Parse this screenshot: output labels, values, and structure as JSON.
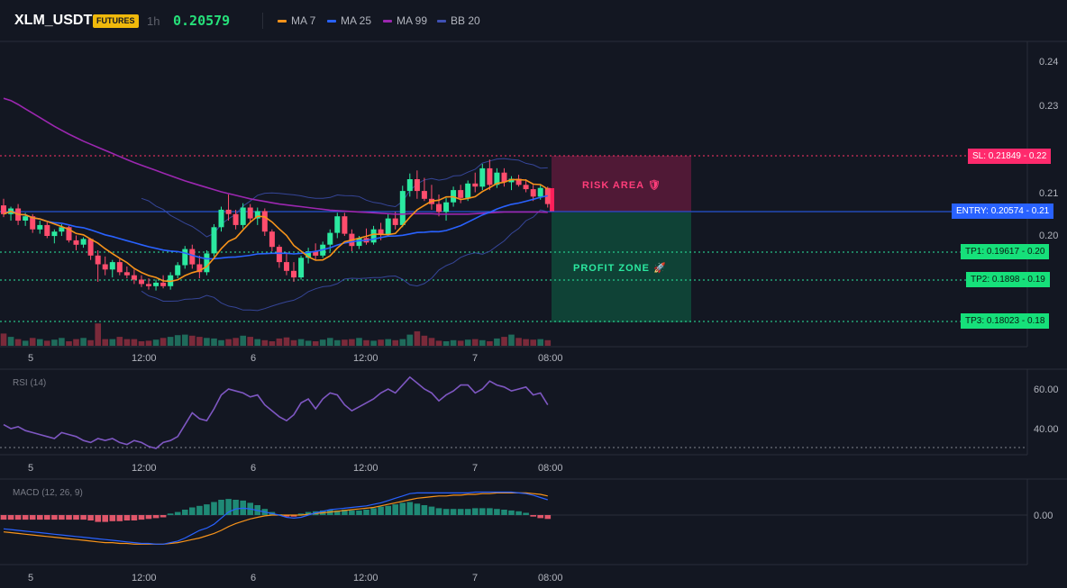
{
  "header": {
    "symbol": "XLM_USDT",
    "badge": "FUTURES",
    "timeframe": "1h",
    "price": "0.20579",
    "legend": [
      {
        "label": "MA 7",
        "color": "#f7931a"
      },
      {
        "label": "MA 25",
        "color": "#2962ff"
      },
      {
        "label": "MA 99",
        "color": "#9c27b0"
      },
      {
        "label": "BB 20",
        "color": "#3f51b5"
      }
    ]
  },
  "price_axis": {
    "ticks": [
      "0.24",
      "0.23",
      "0.22",
      "0.21",
      "0.20",
      "0.19",
      "0.18"
    ]
  },
  "time_axis": {
    "ticks": [
      "5",
      "12:00",
      "6",
      "12:00",
      "7",
      "08:00"
    ]
  },
  "levels": {
    "sl": {
      "label": "SL: 0.21849",
      "axis_value": "0.22",
      "value": 0.21849,
      "color": "#ff3366"
    },
    "entry": {
      "label": "ENTRY: 0.20574",
      "axis_value": "0.21",
      "value": 0.20574,
      "color": "#2962ff"
    },
    "tp": [
      {
        "label": "TP1: 0.19617",
        "axis_value": "0.20",
        "value": 0.19617
      },
      {
        "label": "TP2: 0.1898",
        "axis_value": "0.19",
        "value": 0.1898
      },
      {
        "label": "TP3: 0.18023",
        "axis_value": "0.18",
        "value": 0.18023
      }
    ]
  },
  "zones": {
    "risk": "RISK AREA 🛡",
    "profit": "PROFIT ZONE 🚀"
  },
  "rsi": {
    "title": "RSI (14)",
    "ticks": [
      "60.00",
      "40.00"
    ],
    "time_ticks": [
      "5",
      "12:00",
      "6",
      "12:00",
      "7",
      "08:00"
    ]
  },
  "macd": {
    "title": "MACD (12, 26, 9)",
    "ticks": [
      "0.00"
    ],
    "time_ticks": [
      "5",
      "12:00",
      "6",
      "12:00",
      "7",
      "08:00"
    ]
  },
  "chart_data": {
    "type": "candlestick",
    "interval": "1h",
    "candles": [
      [
        0.2065,
        0.208,
        0.2038,
        0.2045
      ],
      [
        0.2045,
        0.2062,
        0.203,
        0.2058
      ],
      [
        0.2058,
        0.2068,
        0.202,
        0.203
      ],
      [
        0.203,
        0.2048,
        0.2018,
        0.204
      ],
      [
        0.204,
        0.2045,
        0.2002,
        0.201
      ],
      [
        0.201,
        0.203,
        0.2,
        0.202
      ],
      [
        0.202,
        0.2026,
        0.199,
        0.1995
      ],
      [
        0.1995,
        0.201,
        0.1978,
        0.2005
      ],
      [
        0.2005,
        0.2022,
        0.1995,
        0.2015
      ],
      [
        0.2015,
        0.2018,
        0.198,
        0.1985
      ],
      [
        0.1985,
        0.1996,
        0.1962,
        0.1975
      ],
      [
        0.1975,
        0.1992,
        0.1968,
        0.1988
      ],
      [
        0.1988,
        0.199,
        0.194,
        0.195
      ],
      [
        0.195,
        0.1962,
        0.189,
        0.193
      ],
      [
        0.193,
        0.1948,
        0.1905,
        0.1918
      ],
      [
        0.1918,
        0.194,
        0.19,
        0.1935
      ],
      [
        0.1935,
        0.1942,
        0.1905,
        0.1912
      ],
      [
        0.1912,
        0.1925,
        0.1898,
        0.1905
      ],
      [
        0.1905,
        0.1918,
        0.1885,
        0.1895
      ],
      [
        0.1895,
        0.1905,
        0.1878,
        0.1885
      ],
      [
        0.1885,
        0.1898,
        0.1872,
        0.188
      ],
      [
        0.188,
        0.1895,
        0.187,
        0.1888
      ],
      [
        0.1888,
        0.1905,
        0.1875,
        0.188
      ],
      [
        0.188,
        0.1912,
        0.1872,
        0.1905
      ],
      [
        0.1905,
        0.1935,
        0.1898,
        0.1928
      ],
      [
        0.1928,
        0.1972,
        0.192,
        0.1965
      ],
      [
        0.1965,
        0.1975,
        0.192,
        0.193
      ],
      [
        0.193,
        0.195,
        0.1898,
        0.1912
      ],
      [
        0.1912,
        0.1962,
        0.1905,
        0.1955
      ],
      [
        0.1955,
        0.2022,
        0.1948,
        0.2015
      ],
      [
        0.2015,
        0.2062,
        0.2005,
        0.2055
      ],
      [
        0.2055,
        0.209,
        0.203,
        0.2045
      ],
      [
        0.2045,
        0.2055,
        0.201,
        0.202
      ],
      [
        0.202,
        0.207,
        0.2012,
        0.206
      ],
      [
        0.206,
        0.2068,
        0.2025,
        0.2035
      ],
      [
        0.2035,
        0.206,
        0.202,
        0.2052
      ],
      [
        0.2052,
        0.2058,
        0.1995,
        0.2005
      ],
      [
        0.2005,
        0.201,
        0.196,
        0.197
      ],
      [
        0.197,
        0.1975,
        0.1922,
        0.1935
      ],
      [
        0.1935,
        0.1958,
        0.1905,
        0.1915
      ],
      [
        0.1915,
        0.1935,
        0.189,
        0.19
      ],
      [
        0.19,
        0.195,
        0.1895,
        0.1945
      ],
      [
        0.1945,
        0.1968,
        0.1932,
        0.196
      ],
      [
        0.196,
        0.1978,
        0.194,
        0.195
      ],
      [
        0.195,
        0.1982,
        0.1945,
        0.1975
      ],
      [
        0.1975,
        0.201,
        0.196,
        0.2002
      ],
      [
        0.2002,
        0.2048,
        0.199,
        0.204
      ],
      [
        0.204,
        0.2048,
        0.1995,
        0.2
      ],
      [
        0.2,
        0.201,
        0.196,
        0.1972
      ],
      [
        0.1972,
        0.1995,
        0.1965,
        0.199
      ],
      [
        0.199,
        0.2012,
        0.1975,
        0.198
      ],
      [
        0.198,
        0.2018,
        0.1975,
        0.201
      ],
      [
        0.201,
        0.2025,
        0.1985,
        0.1998
      ],
      [
        0.1998,
        0.2045,
        0.1995,
        0.2035
      ],
      [
        0.2035,
        0.205,
        0.201,
        0.202
      ],
      [
        0.202,
        0.211,
        0.2015,
        0.2098
      ],
      [
        0.2098,
        0.2138,
        0.2085,
        0.2125
      ],
      [
        0.2125,
        0.2145,
        0.208,
        0.2098
      ],
      [
        0.2098,
        0.2128,
        0.2075,
        0.208
      ],
      [
        0.208,
        0.2112,
        0.2055,
        0.2068
      ],
      [
        0.2068,
        0.209,
        0.204,
        0.205
      ],
      [
        0.205,
        0.2082,
        0.203,
        0.2072
      ],
      [
        0.2072,
        0.2108,
        0.2062,
        0.21
      ],
      [
        0.21,
        0.2112,
        0.207,
        0.2082
      ],
      [
        0.2082,
        0.2122,
        0.2075,
        0.2115
      ],
      [
        0.2115,
        0.214,
        0.2095,
        0.2108
      ],
      [
        0.2108,
        0.216,
        0.21,
        0.215
      ],
      [
        0.215,
        0.217,
        0.21,
        0.2112
      ],
      [
        0.2112,
        0.215,
        0.2105,
        0.214
      ],
      [
        0.214,
        0.215,
        0.2108,
        0.2118
      ],
      [
        0.2118,
        0.2132,
        0.21,
        0.2126
      ],
      [
        0.2126,
        0.2135,
        0.2108,
        0.2112
      ],
      [
        0.2112,
        0.2125,
        0.2095,
        0.2102
      ],
      [
        0.2102,
        0.2112,
        0.2075,
        0.2085
      ],
      [
        0.2085,
        0.2112,
        0.2078,
        0.2105
      ],
      [
        0.2105,
        0.2108,
        0.206,
        0.2068
      ]
    ],
    "volume": [
      22,
      16,
      12,
      9,
      14,
      12,
      9,
      11,
      14,
      8,
      12,
      14,
      10,
      40,
      12,
      12,
      16,
      12,
      12,
      8,
      9,
      11,
      14,
      16,
      19,
      20,
      18,
      16,
      14,
      13,
      10,
      12,
      14,
      18,
      16,
      12,
      10,
      8,
      13,
      15,
      10,
      12,
      9,
      8,
      11,
      14,
      10,
      11,
      12,
      14,
      10,
      9,
      11,
      12,
      10,
      12,
      20,
      26,
      18,
      14,
      9,
      8,
      10,
      9,
      11,
      12,
      10,
      8,
      13,
      16,
      20,
      14,
      12,
      11,
      12,
      10
    ],
    "ma99": [
      0.231,
      0.2305,
      0.2296,
      0.2286,
      0.2276,
      0.2266,
      0.2256,
      0.2246,
      0.2237,
      0.2228,
      0.222,
      0.2212,
      0.2205,
      0.2198,
      0.2191,
      0.2184,
      0.2177,
      0.217,
      0.2163,
      0.2157,
      0.2151,
      0.2145,
      0.2139,
      0.2133,
      0.2127,
      0.2121,
      0.2116,
      0.2111,
      0.2106,
      0.2101,
      0.2096,
      0.2092,
      0.2088,
      0.2084,
      0.208,
      0.2077,
      0.2074,
      0.2071,
      0.2068,
      0.2066,
      0.2064,
      0.2062,
      0.206,
      0.2058,
      0.2056,
      0.2054,
      0.2053,
      0.2052,
      0.2051,
      0.205,
      0.2049,
      0.2048,
      0.2047,
      0.2046,
      0.2045,
      0.2045,
      0.2046,
      0.2046,
      0.2046,
      0.2046,
      0.2045,
      0.2045,
      0.2045,
      0.2045,
      0.2045,
      0.2046,
      0.2047,
      0.2048,
      0.2049,
      0.205,
      0.205,
      0.205,
      0.205,
      0.205,
      0.205,
      0.2049
    ],
    "rsi": [
      42,
      40,
      41,
      39,
      38,
      37,
      36,
      35,
      38,
      37,
      36,
      34,
      33,
      35,
      34,
      35,
      33,
      32,
      34,
      33,
      31,
      30,
      33,
      34,
      36,
      42,
      48,
      45,
      44,
      50,
      57,
      60,
      59,
      58,
      56,
      57,
      52,
      49,
      46,
      44,
      47,
      53,
      55,
      50,
      55,
      58,
      57,
      52,
      49,
      51,
      53,
      55,
      58,
      60,
      58,
      62,
      66,
      63,
      60,
      58,
      54,
      57,
      59,
      62,
      62,
      58,
      60,
      64,
      62,
      61,
      59,
      60,
      61,
      57,
      58,
      52
    ],
    "macd_hist": [
      -0.6,
      -0.6,
      -0.6,
      -0.6,
      -0.6,
      -0.6,
      -0.6,
      -0.6,
      -0.6,
      -0.6,
      -0.6,
      -0.6,
      -0.7,
      -0.9,
      -0.9,
      -0.8,
      -0.8,
      -0.7,
      -0.7,
      -0.6,
      -0.5,
      -0.4,
      -0.3,
      0.2,
      0.4,
      0.7,
      1.0,
      1.2,
      1.4,
      1.7,
      2.0,
      2.1,
      2.0,
      1.9,
      1.6,
      1.3,
      0.8,
      0.4,
      0.1,
      -0.2,
      -0.2,
      0.2,
      0.4,
      0.5,
      0.6,
      0.7,
      0.6,
      0.7,
      0.6,
      0.6,
      0.7,
      0.9,
      1.1,
      1.2,
      1.4,
      1.6,
      1.7,
      1.5,
      1.3,
      1.1,
      0.9,
      0.8,
      0.8,
      0.8,
      0.8,
      0.9,
      0.9,
      0.9,
      0.8,
      0.7,
      0.6,
      0.5,
      0.3,
      -0.2,
      -0.4,
      -0.5
    ],
    "macd_line": [
      -1.8,
      -1.9,
      -2.0,
      -2.1,
      -2.2,
      -2.3,
      -2.4,
      -2.5,
      -2.6,
      -2.7,
      -2.8,
      -2.9,
      -3.0,
      -3.1,
      -3.2,
      -3.3,
      -3.4,
      -3.5,
      -3.6,
      -3.7,
      -3.7,
      -3.8,
      -3.8,
      -3.6,
      -3.4,
      -3.0,
      -2.5,
      -2.0,
      -1.7,
      -1.2,
      -0.4,
      0.4,
      0.8,
      0.9,
      0.8,
      0.6,
      0.4,
      0.2,
      0.0,
      -0.3,
      -0.4,
      -0.3,
      0.0,
      0.3,
      0.5,
      0.7,
      0.8,
      0.9,
      1.0,
      1.1,
      1.2,
      1.4,
      1.6,
      1.9,
      2.2,
      2.5,
      2.8,
      2.9,
      2.9,
      2.9,
      2.9,
      2.9,
      2.9,
      2.9,
      2.9,
      3.0,
      3.0,
      3.0,
      3.0,
      3.0,
      3.0,
      2.9,
      2.8,
      2.6,
      2.3,
      2.0
    ],
    "macd_signal": [
      -2.2,
      -2.3,
      -2.4,
      -2.5,
      -2.6,
      -2.7,
      -2.8,
      -2.9,
      -3.0,
      -3.1,
      -3.2,
      -3.3,
      -3.4,
      -3.5,
      -3.6,
      -3.6,
      -3.7,
      -3.7,
      -3.8,
      -3.8,
      -3.8,
      -3.8,
      -3.8,
      -3.7,
      -3.6,
      -3.4,
      -3.2,
      -3.0,
      -2.7,
      -2.4,
      -2.0,
      -1.5,
      -1.1,
      -0.8,
      -0.5,
      -0.3,
      -0.1,
      0.0,
      0.0,
      0.0,
      0.0,
      0.0,
      0.1,
      0.2,
      0.3,
      0.4,
      0.5,
      0.6,
      0.7,
      0.8,
      0.9,
      1.0,
      1.2,
      1.4,
      1.6,
      1.8,
      2.0,
      2.2,
      2.3,
      2.4,
      2.5,
      2.5,
      2.6,
      2.6,
      2.7,
      2.7,
      2.8,
      2.8,
      2.9,
      2.9,
      2.9,
      2.9,
      2.9,
      2.8,
      2.7,
      2.5
    ],
    "colors": {
      "up": "#2be9a0",
      "down": "#ff4d6d",
      "ma7": "#f7931a",
      "ma25": "#2962ff",
      "ma99": "#9c27b0",
      "bb": "#3f51b5",
      "rsi": "#7e57c2",
      "macd": "#2962ff",
      "signal": "#f7931a"
    }
  }
}
